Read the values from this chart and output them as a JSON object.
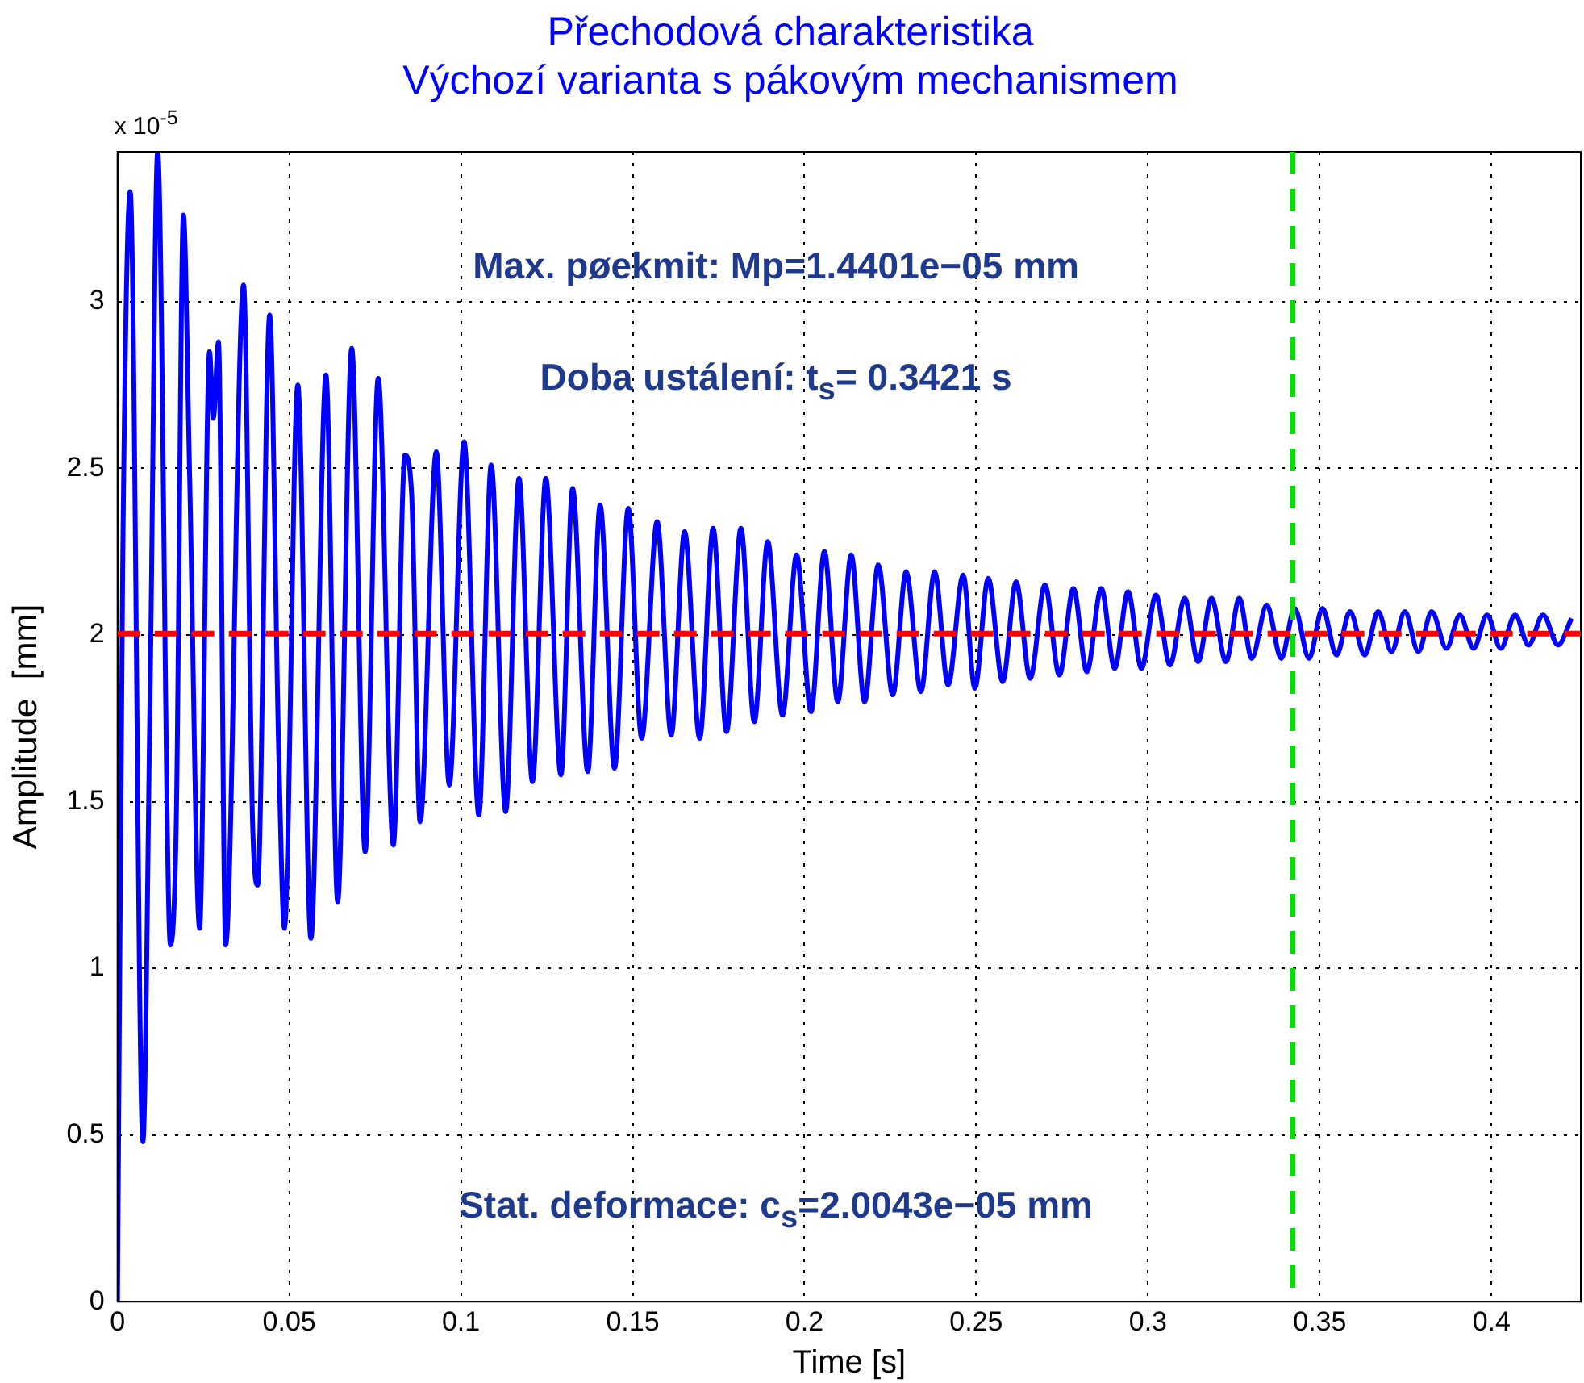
{
  "chart_data": {
    "type": "line",
    "title": "Přechodová charakteristika",
    "subtitle": "Výchozí varianta s pákovým mechanismem",
    "xlabel": "Time [s]",
    "ylabel": "Amplitude  [mm]",
    "annotations": [
      "x 10$^{-5}$",
      "Max. pøekmit: Mp=1.4401e−05 mm",
      "Doba ustálení: t$_{s}$= 0.3421 s",
      "Stat. deformace: c$_{s}$=2.0043e−05 mm"
    ],
    "x": [
      0,
      0.0015,
      0.0037,
      0.0074,
      0.0095,
      0.0117,
      0.0154,
      0.0171,
      0.0192,
      0.021,
      0.0239,
      0.0268,
      0.0279,
      0.0294,
      0.0315,
      0.0367,
      0.0393,
      0.0408,
      0.0443,
      0.0469,
      0.0486,
      0.0525,
      0.0563,
      0.0607,
      0.0641,
      0.0682,
      0.0721,
      0.0759,
      0.0803,
      0.0837,
      0.0856,
      0.0881,
      0.0928,
      0.0966,
      0.1009,
      0.1052,
      0.1088,
      0.113,
      0.1169,
      0.1208,
      0.1247,
      0.1291,
      0.1325,
      0.1369,
      0.1405,
      0.1447,
      0.1487,
      0.1526,
      0.1571,
      0.1612,
      0.1651,
      0.1695,
      0.1734,
      0.1773,
      0.1815,
      0.1854,
      0.1893,
      0.1936,
      0.1977,
      0.2019,
      0.2058,
      0.2097,
      0.2136,
      0.2175,
      0.2215,
      0.2257,
      0.2296,
      0.2339,
      0.2379,
      0.2418,
      0.2462,
      0.2496,
      0.2535,
      0.2577,
      0.2616,
      0.2657,
      0.27,
      0.2742,
      0.2783,
      0.2822,
      0.2864,
      0.2903,
      0.2942,
      0.2981,
      0.3023,
      0.3064,
      0.3107,
      0.3146,
      0.3185,
      0.3227,
      0.3266,
      0.3302,
      0.3346,
      0.3388,
      0.3427,
      0.3469,
      0.3508,
      0.3549,
      0.3588,
      0.3631,
      0.367,
      0.3709,
      0.3748,
      0.3787,
      0.3826,
      0.3869,
      0.3908,
      0.3948,
      0.3987,
      0.4027,
      0.4069,
      0.4108,
      0.415,
      0.4194,
      0.4233
    ],
    "series": [
      {
        "color": "#0000ff",
        "values": [
          0,
          2.19,
          3.33,
          0.48,
          1.83,
          3.45,
          1.07,
          1.43,
          3.26,
          2.48,
          1.12,
          2.85,
          2.65,
          2.88,
          1.07,
          3.05,
          1.45,
          1.25,
          2.96,
          1.67,
          1.12,
          2.75,
          1.09,
          2.78,
          1.2,
          2.86,
          1.35,
          2.77,
          1.37,
          2.54,
          2.43,
          1.44,
          2.55,
          1.55,
          2.58,
          1.46,
          2.51,
          1.47,
          2.47,
          1.56,
          2.47,
          1.58,
          2.44,
          1.59,
          2.39,
          1.6,
          2.38,
          1.69,
          2.34,
          1.7,
          2.31,
          1.69,
          2.32,
          1.71,
          2.32,
          1.74,
          2.28,
          1.76,
          2.24,
          1.77,
          2.25,
          1.8,
          2.24,
          1.8,
          2.21,
          1.82,
          2.19,
          1.83,
          2.19,
          1.85,
          2.18,
          1.84,
          2.17,
          1.86,
          2.16,
          1.87,
          2.15,
          1.88,
          2.14,
          1.89,
          2.14,
          1.9,
          2.13,
          1.9,
          2.12,
          1.91,
          2.11,
          1.92,
          2.11,
          1.92,
          2.11,
          1.93,
          2.09,
          1.93,
          2.08,
          1.93,
          2.08,
          1.94,
          2.07,
          1.94,
          2.07,
          1.95,
          2.07,
          1.95,
          2.07,
          1.96,
          2.06,
          1.96,
          2.06,
          1.96,
          2.06,
          1.97,
          2.06,
          1.97,
          2.05
        ]
      }
    ],
    "ref_lines": [
      {
        "axis": "y",
        "value": 2.0043,
        "color": "#ff0000",
        "line_style": "dashed"
      },
      {
        "axis": "x",
        "value": 0.3421,
        "color": "#00e000",
        "line_style": "dashed"
      }
    ],
    "xlim": [
      0,
      0.426
    ],
    "xticks": [
      0,
      0.05,
      0.1,
      0.15,
      0.2,
      0.25,
      0.3,
      0.35,
      0.4
    ],
    "ylim": [
      0,
      3.45
    ],
    "yticks": [
      0,
      0.5,
      1,
      1.5,
      2,
      2.5,
      3
    ],
    "grid": true,
    "legend": false,
    "marker": "none",
    "line_style": "solid"
  }
}
